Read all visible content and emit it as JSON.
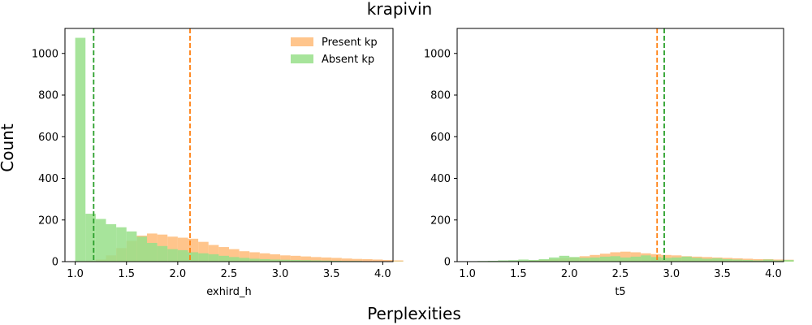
{
  "figure": {
    "title": "krapivin",
    "xlabel": "Perplexities",
    "ylabel": "Count"
  },
  "colors": {
    "present": "#ffbb78",
    "absent": "#98df8a",
    "present_mean": "#ff7f0e",
    "absent_mean": "#2ca02c"
  },
  "legend": {
    "placement": "upper-right",
    "items": [
      "Present kp",
      "Absent kp"
    ]
  },
  "chart_data": [
    {
      "type": "histogram",
      "xlabel": "exhird_h",
      "xlim": [
        0.9,
        4.1
      ],
      "ylim": [
        0,
        1120
      ],
      "xticks": [
        "1.0",
        "1.5",
        "2.0",
        "2.5",
        "3.0",
        "3.5",
        "4.0"
      ],
      "yticks": [
        "0",
        "200",
        "400",
        "600",
        "800",
        "1000"
      ],
      "bin_start": 1.0,
      "bin_width": 0.1,
      "show_legend": true,
      "series": [
        {
          "name": "Present kp",
          "key": "present",
          "counts": [
            0,
            3,
            10,
            30,
            65,
            100,
            125,
            135,
            130,
            120,
            115,
            110,
            95,
            80,
            70,
            60,
            50,
            45,
            40,
            35,
            30,
            28,
            25,
            22,
            20,
            18,
            15,
            13,
            12,
            10,
            8,
            6
          ]
        },
        {
          "name": "Absent kp",
          "key": "absent",
          "counts": [
            1075,
            230,
            205,
            180,
            165,
            145,
            120,
            90,
            75,
            60,
            55,
            45,
            40,
            35,
            28,
            22,
            18,
            14,
            12,
            10,
            9,
            8,
            7,
            6,
            5,
            4,
            3,
            3,
            2,
            2,
            1,
            1
          ]
        }
      ],
      "means": [
        {
          "key": "present",
          "x": 2.12
        },
        {
          "key": "absent",
          "x": 1.18
        }
      ]
    },
    {
      "type": "histogram",
      "xlabel": "t5",
      "xlim": [
        0.9,
        4.1
      ],
      "ylim": [
        0,
        1120
      ],
      "xticks": [
        "1.0",
        "1.5",
        "2.0",
        "2.5",
        "3.0",
        "3.5",
        "4.0"
      ],
      "yticks": [
        "0",
        "200",
        "400",
        "600",
        "800",
        "1000"
      ],
      "bin_start": 1.0,
      "bin_width": 0.1,
      "show_legend": false,
      "series": [
        {
          "name": "Present kp",
          "key": "present",
          "counts": [
            0,
            0,
            0,
            1,
            2,
            3,
            5,
            8,
            12,
            16,
            20,
            26,
            32,
            38,
            45,
            48,
            45,
            40,
            36,
            32,
            30,
            26,
            24,
            22,
            20,
            18,
            16,
            14,
            12,
            12,
            10,
            9
          ]
        },
        {
          "name": "Absent kp",
          "key": "absent",
          "counts": [
            2,
            3,
            4,
            6,
            7,
            10,
            8,
            12,
            20,
            28,
            22,
            18,
            20,
            24,
            26,
            20,
            24,
            30,
            22,
            18,
            20,
            24,
            18,
            14,
            16,
            12,
            10,
            8,
            6,
            10,
            6,
            8
          ]
        }
      ],
      "means": [
        {
          "key": "present",
          "x": 2.86
        },
        {
          "key": "absent",
          "x": 2.93
        }
      ]
    }
  ]
}
